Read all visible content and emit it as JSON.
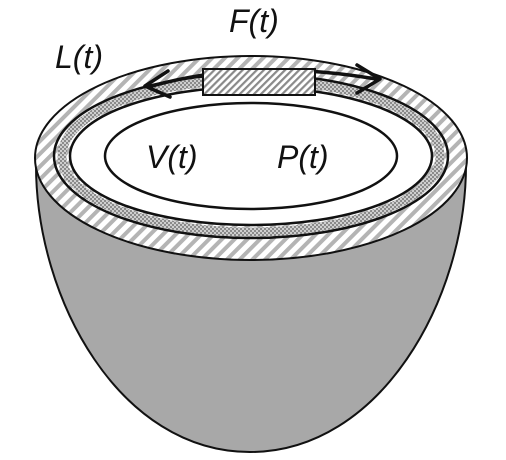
{
  "labels": {
    "force": "F(t)",
    "length": "L(t)",
    "volume": "V(t)",
    "pressure": "P(t)"
  },
  "colors": {
    "wall": "#a8a8a8",
    "stroke": "#111111",
    "hatch_stripe": "#b4b4b4",
    "dotted_band": "#7a7a7a",
    "background": "#ffffff"
  }
}
